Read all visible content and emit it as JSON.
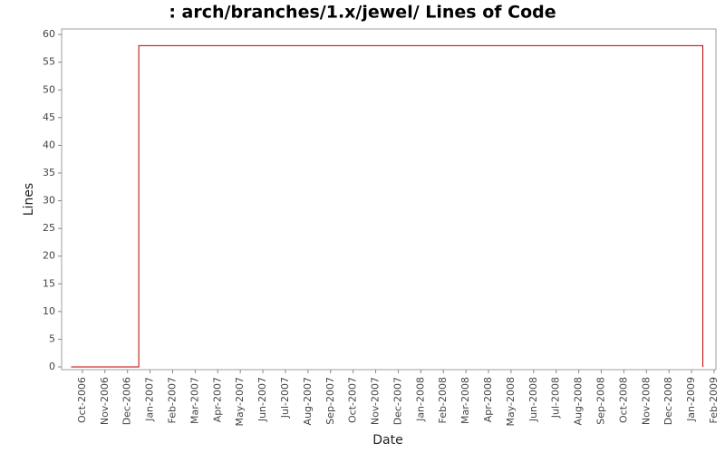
{
  "chart_data": {
    "type": "line",
    "title": ": arch/branches/1.x/jewel/ Lines of Code",
    "xlabel": "Date",
    "ylabel": "Lines",
    "x": [
      "2006-09",
      "2006-12",
      "2006-12",
      "2009-01",
      "2009-01"
    ],
    "series": [
      {
        "name": "Lines",
        "color": "#c00000",
        "values": [
          0,
          0,
          58,
          58,
          0
        ]
      }
    ],
    "xlim": [
      "2006-09",
      "2009-02"
    ],
    "xticks": [
      {
        "value": "2006-10",
        "label": "Oct-2006"
      },
      {
        "value": "2006-11",
        "label": "Nov-2006"
      },
      {
        "value": "2006-12",
        "label": "Dec-2006"
      },
      {
        "value": "2007-01",
        "label": "Jan-2007"
      },
      {
        "value": "2007-02",
        "label": "Feb-2007"
      },
      {
        "value": "2007-03",
        "label": "Mar-2007"
      },
      {
        "value": "2007-04",
        "label": "Apr-2007"
      },
      {
        "value": "2007-05",
        "label": "May-2007"
      },
      {
        "value": "2007-06",
        "label": "Jun-2007"
      },
      {
        "value": "2007-07",
        "label": "Jul-2007"
      },
      {
        "value": "2007-08",
        "label": "Aug-2007"
      },
      {
        "value": "2007-09",
        "label": "Sep-2007"
      },
      {
        "value": "2007-10",
        "label": "Oct-2007"
      },
      {
        "value": "2007-11",
        "label": "Nov-2007"
      },
      {
        "value": "2007-12",
        "label": "Dec-2007"
      },
      {
        "value": "2008-01",
        "label": "Jan-2008"
      },
      {
        "value": "2008-02",
        "label": "Feb-2008"
      },
      {
        "value": "2008-03",
        "label": "Mar-2008"
      },
      {
        "value": "2008-04",
        "label": "Apr-2008"
      },
      {
        "value": "2008-05",
        "label": "May-2008"
      },
      {
        "value": "2008-06",
        "label": "Jun-2008"
      },
      {
        "value": "2008-07",
        "label": "Jul-2008"
      },
      {
        "value": "2008-08",
        "label": "Aug-2008"
      },
      {
        "value": "2008-09",
        "label": "Sep-2008"
      },
      {
        "value": "2008-10",
        "label": "Oct-2008"
      },
      {
        "value": "2008-11",
        "label": "Nov-2008"
      },
      {
        "value": "2008-12",
        "label": "Dec-2008"
      },
      {
        "value": "2009-01",
        "label": "Jan-2009"
      },
      {
        "value": "2009-02",
        "label": "Feb-2009"
      }
    ],
    "ylim": [
      0,
      61
    ],
    "yticks": [
      0,
      5,
      10,
      15,
      20,
      25,
      30,
      35,
      40,
      45,
      50,
      55,
      60
    ],
    "grid": false
  }
}
